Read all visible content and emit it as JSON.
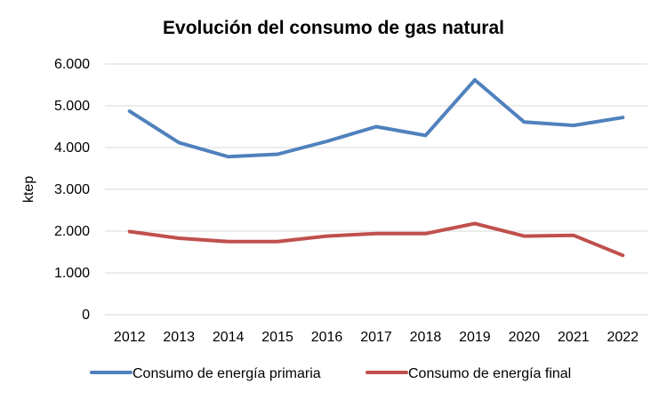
{
  "chart_data": {
    "type": "line",
    "title": "Evolución del consumo de gas natural",
    "xlabel": "",
    "ylabel": "ktep",
    "categories": [
      "2012",
      "2013",
      "2014",
      "2015",
      "2016",
      "2017",
      "2018",
      "2019",
      "2020",
      "2021",
      "2022"
    ],
    "ylim": [
      0,
      6000
    ],
    "yticks": [
      0,
      1000,
      2000,
      3000,
      4000,
      5000,
      6000
    ],
    "ytick_labels": [
      "0",
      "1.000",
      "2.000",
      "3.000",
      "4.000",
      "5.000",
      "6.000"
    ],
    "grid": true,
    "legend_position": "bottom",
    "series": [
      {
        "name": "Consumo de energía primaria",
        "color": "#4F81BD",
        "values": [
          4870,
          4120,
          3780,
          3840,
          4150,
          4500,
          4290,
          5620,
          4610,
          4530,
          4720
        ]
      },
      {
        "name": "Consumo de energía final",
        "color": "#C0504D",
        "values": [
          1990,
          1830,
          1750,
          1750,
          1880,
          1940,
          1940,
          2180,
          1880,
          1900,
          1420
        ]
      }
    ]
  }
}
